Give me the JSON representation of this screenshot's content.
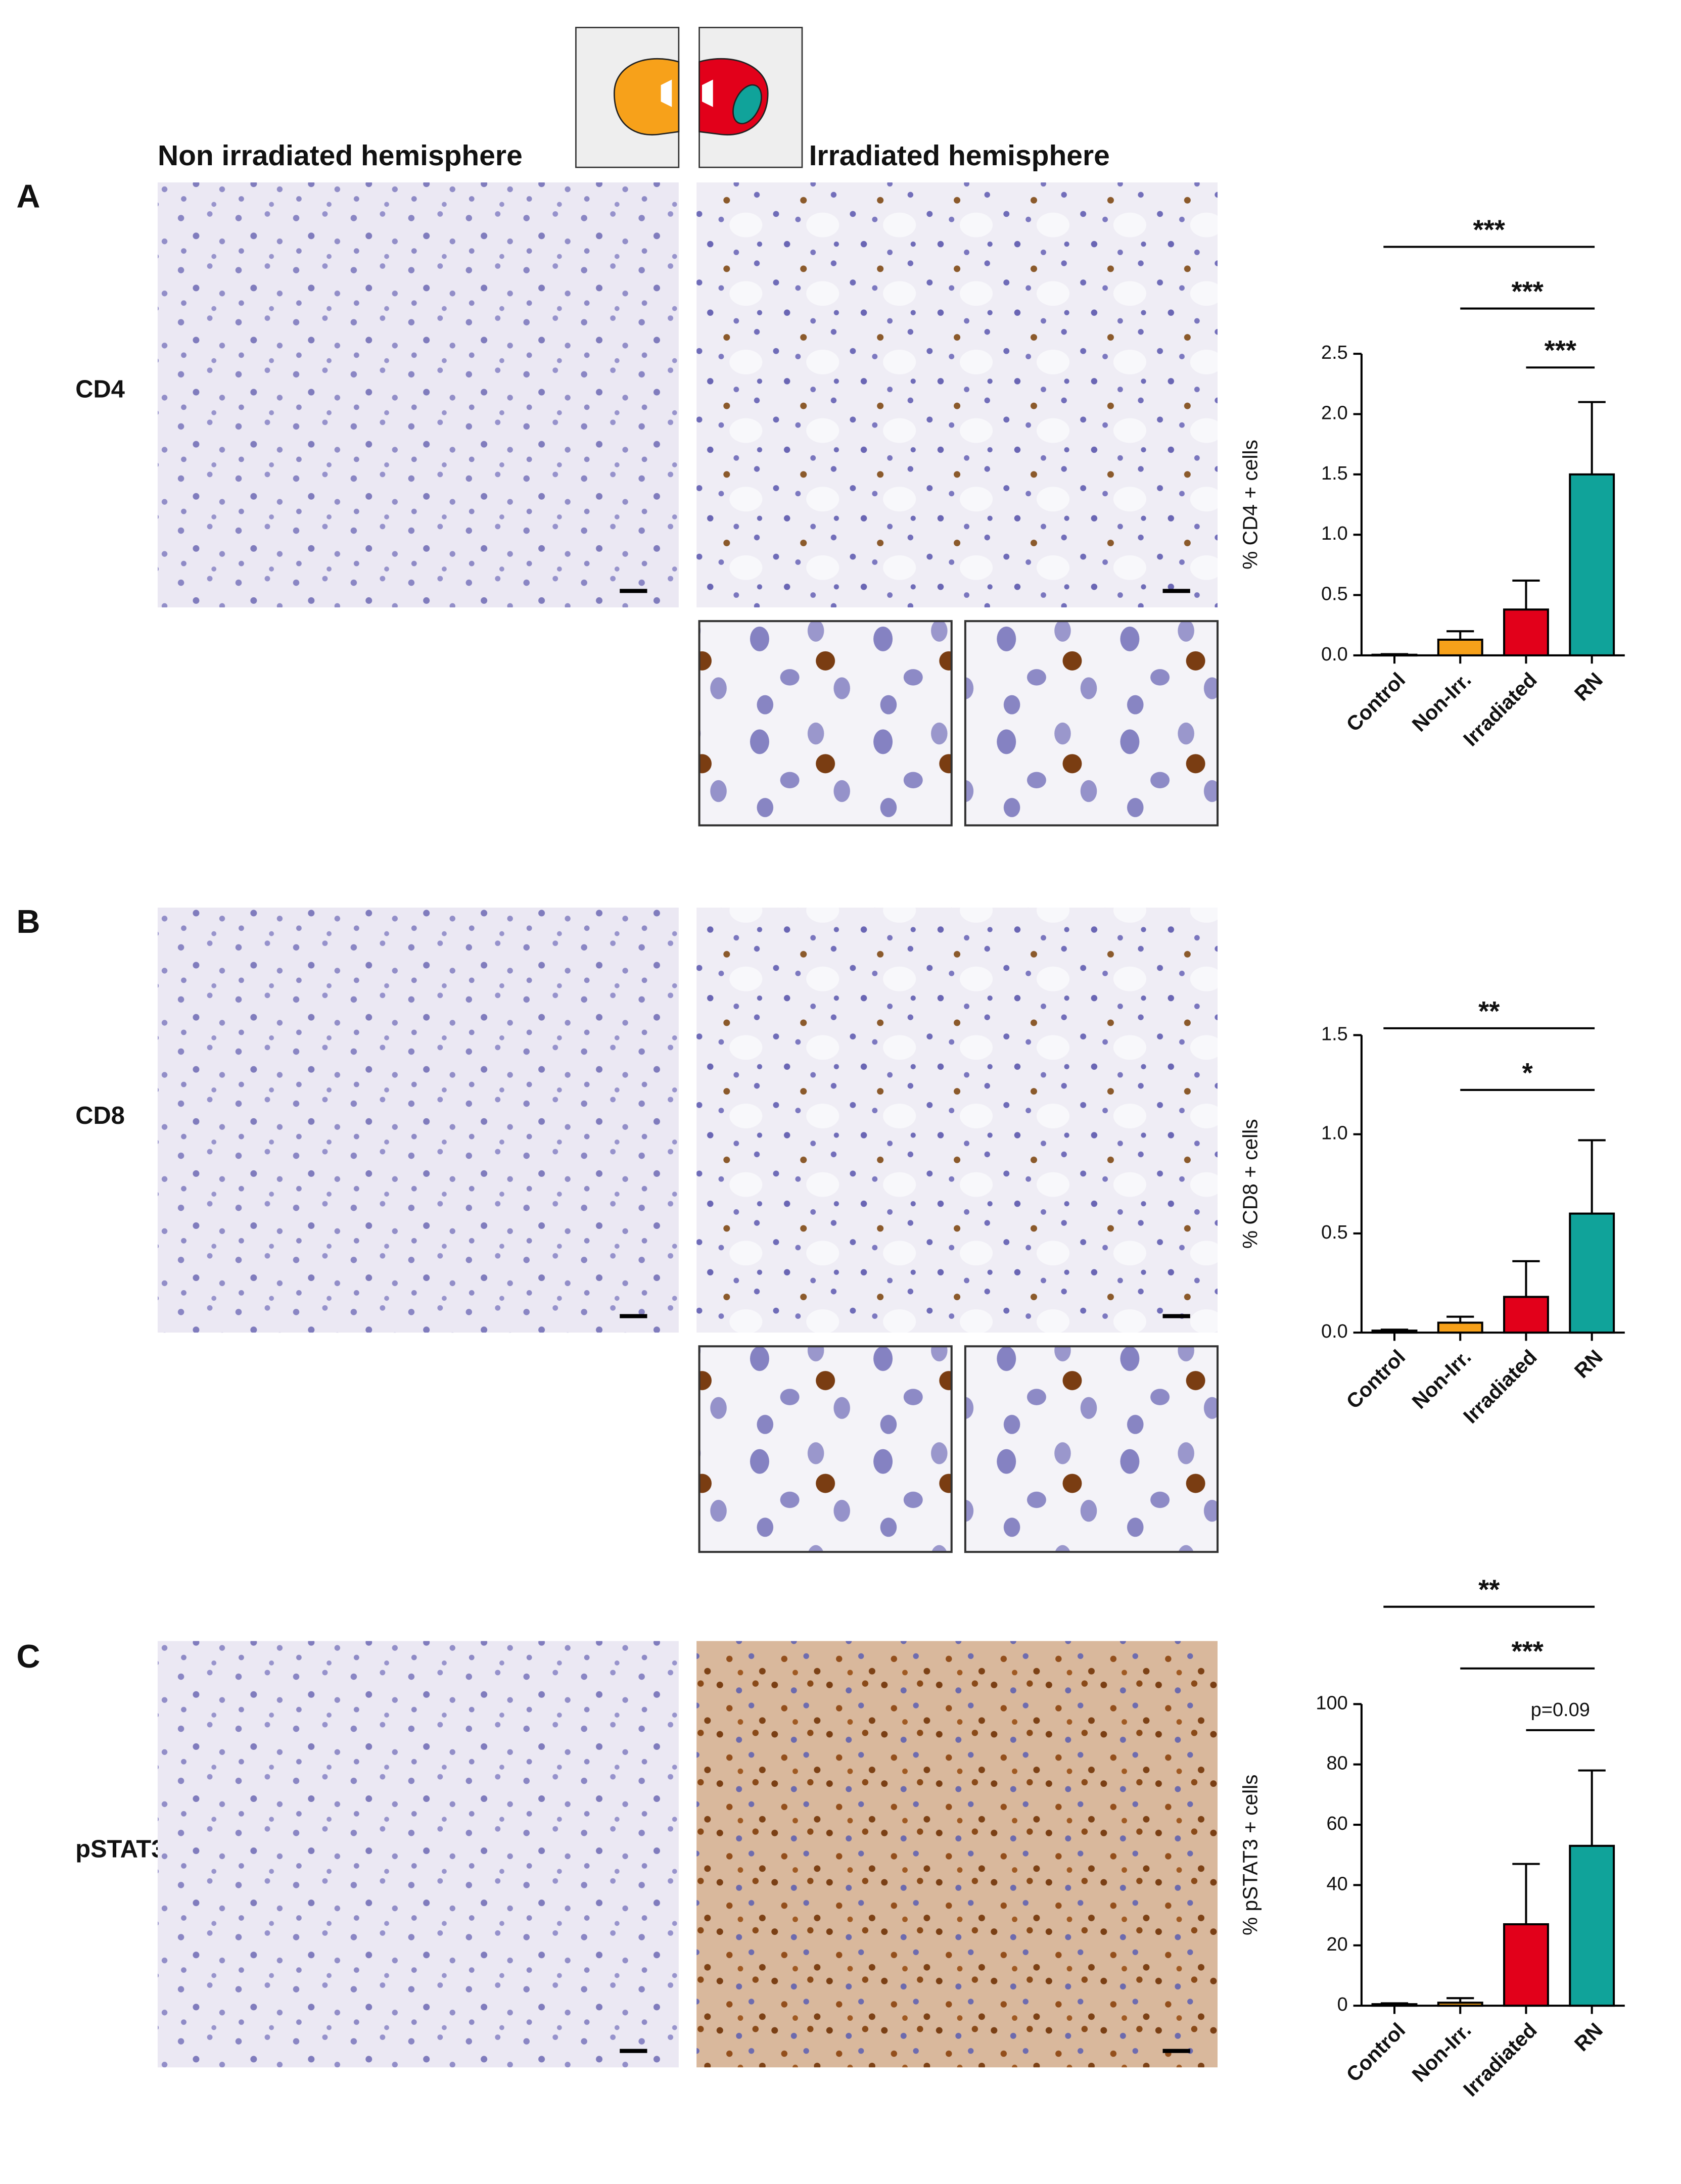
{
  "figure": {
    "column_labels": [
      "Non irradiated hemisphere",
      "Irradiated hemisphere"
    ],
    "panels": [
      {
        "letter": "A",
        "marker": "CD4"
      },
      {
        "letter": "B",
        "marker": "CD8"
      },
      {
        "letter": "C",
        "marker": "pSTAT3"
      }
    ]
  },
  "chart_data": [
    {
      "type": "bar",
      "y_label": "% CD4 + cells",
      "categories": [
        "Control",
        "Non-Irr.",
        "Irradiated",
        "RN"
      ],
      "values": [
        0.005,
        0.13,
        0.38,
        1.5
      ],
      "errors": [
        0.005,
        0.07,
        0.24,
        0.6
      ],
      "colors": [
        "#ffffff",
        "#f7a11a",
        "#e2001a",
        "#10a39a"
      ],
      "ylim": [
        0,
        2.5
      ],
      "yticks": [
        {
          "value": 0,
          "label": "0.0"
        },
        {
          "value": 0.5,
          "label": "0.5"
        },
        {
          "value": 1,
          "label": "1.0"
        },
        {
          "value": 1.5,
          "label": "1.5"
        },
        {
          "value": 2,
          "label": "2.0"
        },
        {
          "value": 2.5,
          "label": "2.5"
        }
      ],
      "comparisons": [
        {
          "label": "***",
          "from": "Control",
          "to": "RN"
        },
        {
          "label": "***",
          "from": "Non-Irr.",
          "to": "RN"
        },
        {
          "label": "***",
          "from": "Irradiated",
          "to": "RN"
        }
      ]
    },
    {
      "type": "bar",
      "y_label": "% CD8 + cells",
      "categories": [
        "Control",
        "Non-Irr.",
        "Irradiated",
        "RN"
      ],
      "values": [
        0.01,
        0.05,
        0.18,
        0.6
      ],
      "errors": [
        0.005,
        0.03,
        0.18,
        0.37
      ],
      "colors": [
        "#ffffff",
        "#f7a11a",
        "#e2001a",
        "#10a39a"
      ],
      "ylim": [
        0,
        1.5
      ],
      "yticks": [
        {
          "value": 0,
          "label": "0.0"
        },
        {
          "value": 0.5,
          "label": "0.5"
        },
        {
          "value": 1,
          "label": "1.0"
        },
        {
          "value": 1.5,
          "label": "1.5"
        }
      ],
      "comparisons": [
        {
          "label": "**",
          "from": "Control",
          "to": "RN"
        },
        {
          "label": "*",
          "from": "Non-Irr.",
          "to": "RN"
        }
      ]
    },
    {
      "type": "bar",
      "y_label": "% pSTAT3 + cells",
      "categories": [
        "Control",
        "Non-Irr.",
        "Irradiated",
        "RN"
      ],
      "values": [
        0.5,
        1,
        27,
        53
      ],
      "errors": [
        0.3,
        1.5,
        20,
        25
      ],
      "colors": [
        "#ffffff",
        "#f7a11a",
        "#e2001a",
        "#10a39a"
      ],
      "ylim": [
        0,
        100
      ],
      "yticks": [
        0,
        20,
        40,
        60,
        80,
        100
      ],
      "comparisons": [
        {
          "label": "**",
          "from": "Control",
          "to": "RN"
        },
        {
          "label": "***",
          "from": "Non-Irr.",
          "to": "RN"
        },
        {
          "label": "p=0.09",
          "from": "Irradiated",
          "to": "RN"
        }
      ]
    }
  ]
}
